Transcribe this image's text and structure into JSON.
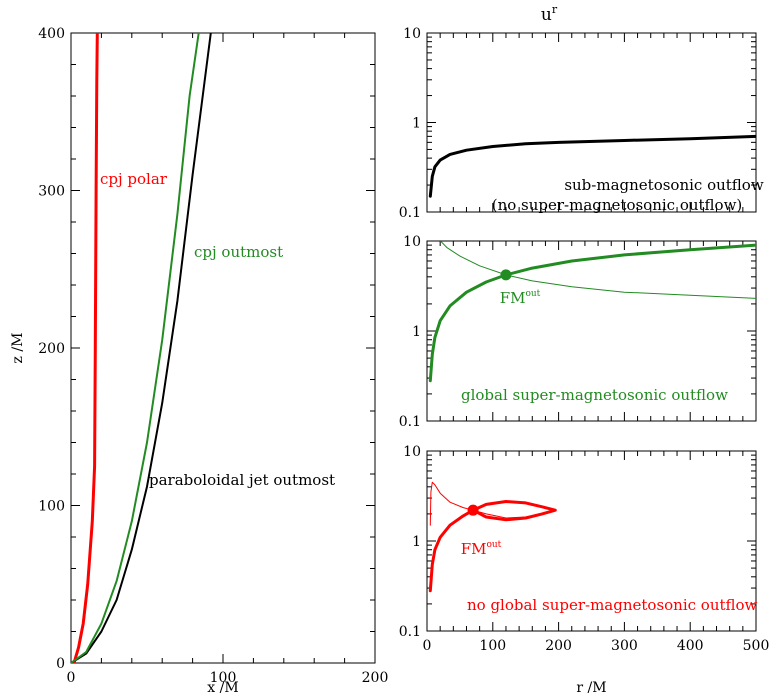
{
  "colors": {
    "black": "#000000",
    "green": "#228B22",
    "red": "#FF0000"
  },
  "top_title": {
    "base": "u",
    "sup": "r"
  },
  "chart_data": [
    {
      "type": "line",
      "panel": "left",
      "xlabel": "x /M",
      "ylabel": "z /M",
      "xlim": [
        0,
        200
      ],
      "ylim": [
        0,
        400
      ],
      "xticks": [
        "0",
        "100",
        "200"
      ],
      "yticks": [
        "0",
        "100",
        "200",
        "300",
        "400"
      ],
      "grid": false,
      "annotations": [
        {
          "text": "cpj polar",
          "color": "#FF0000"
        },
        {
          "text": "cpj outmost",
          "color": "#228B22"
        },
        {
          "text": "paraboloidal jet outmost",
          "color": "#000000"
        }
      ],
      "series": [
        {
          "color": "#FF0000",
          "width": 3,
          "x": [
            2,
            5,
            8,
            11,
            14,
            15.5,
            16,
            16.5,
            17,
            17.3
          ],
          "y": [
            0,
            10,
            25,
            50,
            90,
            125,
            200,
            300,
            370,
            400
          ]
        },
        {
          "color": "#000000",
          "width": 2,
          "x": [
            0,
            10,
            20,
            30,
            40,
            50,
            60,
            70,
            80,
            92
          ],
          "y": [
            0,
            6,
            20,
            40,
            72,
            112,
            165,
            230,
            310,
            400
          ]
        },
        {
          "color": "#228B22",
          "width": 2,
          "x": [
            0,
            10,
            20,
            30,
            40,
            50,
            60,
            70,
            78,
            84
          ],
          "y": [
            0,
            7,
            25,
            52,
            90,
            140,
            205,
            285,
            360,
            400
          ]
        }
      ]
    },
    {
      "type": "line",
      "panel": "right-top",
      "xlim": [
        0,
        500
      ],
      "ylim": [
        0.1,
        10
      ],
      "yscale": "log",
      "yticks": [
        "0.1",
        "1",
        "10"
      ],
      "annotations": [
        {
          "text": "sub-magnetosonic outflow",
          "color": "#000000"
        },
        {
          "text": "(no super-magnetosonic outflow)",
          "color": "#000000"
        }
      ],
      "series": [
        {
          "color": "#000000",
          "width": 3,
          "x": [
            5,
            8,
            12,
            20,
            35,
            60,
            100,
            150,
            200,
            300,
            400,
            500
          ],
          "y": [
            0.15,
            0.25,
            0.32,
            0.38,
            0.44,
            0.49,
            0.54,
            0.58,
            0.6,
            0.63,
            0.66,
            0.7
          ]
        }
      ]
    },
    {
      "type": "line",
      "panel": "right-middle",
      "xlim": [
        0,
        500
      ],
      "ylim": [
        0.1,
        10
      ],
      "yscale": "log",
      "yticks": [
        "0.1",
        "1",
        "10"
      ],
      "annotations": [
        {
          "text": "global super-magnetosonic outflow",
          "color": "#228B22"
        },
        {
          "text": "FM",
          "sup": "out",
          "color": "#228B22"
        }
      ],
      "marker": {
        "x": 120,
        "y": 4.2,
        "color": "#228B22"
      },
      "series": [
        {
          "color": "#228B22",
          "width": 3,
          "x": [
            5,
            8,
            12,
            20,
            35,
            60,
            90,
            120,
            160,
            220,
            300,
            400,
            500
          ],
          "y": [
            0.28,
            0.55,
            0.85,
            1.3,
            1.9,
            2.7,
            3.5,
            4.2,
            5.0,
            6.0,
            7.0,
            8.0,
            9.0
          ]
        },
        {
          "color": "#228B22",
          "width": 1,
          "x": [
            15,
            30,
            50,
            80,
            120,
            160,
            220,
            300,
            400,
            500
          ],
          "y": [
            11,
            8.5,
            6.8,
            5.3,
            4.2,
            3.6,
            3.1,
            2.7,
            2.5,
            2.3
          ]
        }
      ]
    },
    {
      "type": "line",
      "panel": "right-bottom",
      "xlim": [
        0,
        500
      ],
      "ylim": [
        0.1,
        10
      ],
      "yscale": "log",
      "xlabel": "r /M",
      "xticks": [
        "0",
        "100",
        "200",
        "300",
        "400",
        "500"
      ],
      "yticks": [
        "0.1",
        "1",
        "10"
      ],
      "annotations": [
        {
          "text": "no global super-magnetosonic outflow",
          "color": "#FF0000"
        },
        {
          "text": "FM",
          "sup": "out",
          "color": "#FF0000"
        }
      ],
      "marker": {
        "x": 70,
        "y": 2.2,
        "color": "#FF0000"
      },
      "series": [
        {
          "color": "#FF0000",
          "width": 3,
          "x": [
            5,
            8,
            12,
            20,
            35,
            55,
            70,
            90,
            120,
            150,
            175,
            195,
            175,
            150,
            120,
            90,
            70
          ],
          "y": [
            0.28,
            0.55,
            0.8,
            1.1,
            1.5,
            1.9,
            2.2,
            2.55,
            2.75,
            2.65,
            2.4,
            2.2,
            2.0,
            1.8,
            1.72,
            1.85,
            2.2
          ]
        },
        {
          "color": "#FF0000",
          "width": 1,
          "x": [
            5,
            6,
            8,
            12,
            20,
            35,
            55,
            70,
            90,
            120,
            150,
            175,
            195
          ],
          "y": [
            1.5,
            3.5,
            4.5,
            4.2,
            3.4,
            2.7,
            2.35,
            2.2,
            2.0,
            1.8,
            1.85,
            2.0,
            2.2
          ]
        }
      ]
    }
  ]
}
